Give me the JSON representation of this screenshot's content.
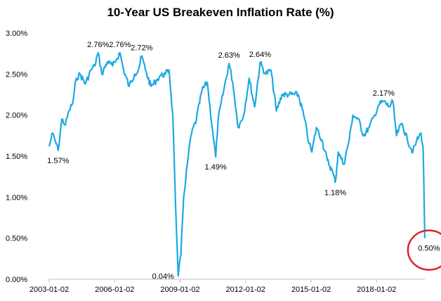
{
  "chart_data": {
    "type": "line",
    "title": "10-Year US Breakeven Inflation Rate (%)",
    "xlabel": "",
    "ylabel": "",
    "x_tick_labels": [
      "2003-01-02",
      "2006-01-02",
      "2009-01-02",
      "2012-01-02",
      "2015-01-02",
      "2018-01-02"
    ],
    "y_tick_labels": [
      "0.00%",
      "0.50%",
      "1.00%",
      "1.50%",
      "2.00%",
      "2.50%",
      "3.00%"
    ],
    "ylim": [
      0,
      3.0
    ],
    "xlim": [
      "2003-01-02",
      "2020-03-20"
    ],
    "grid": false,
    "legend": "none",
    "colors": {
      "line": "#1ea9e1",
      "highlight_circle": "#d9262c"
    },
    "series": [
      {
        "name": "",
        "points": [
          [
            "2003-01-02",
            1.62
          ],
          [
            "2003-03-01",
            1.78
          ],
          [
            "2003-05-01",
            1.65
          ],
          [
            "2003-06-01",
            1.57
          ],
          [
            "2003-08-01",
            1.95
          ],
          [
            "2003-10-01",
            1.88
          ],
          [
            "2003-12-01",
            2.05
          ],
          [
            "2004-02-01",
            2.15
          ],
          [
            "2004-04-01",
            2.45
          ],
          [
            "2004-06-01",
            2.5
          ],
          [
            "2004-09-01",
            2.38
          ],
          [
            "2004-12-01",
            2.55
          ],
          [
            "2005-02-01",
            2.6
          ],
          [
            "2005-04-01",
            2.76
          ],
          [
            "2005-06-01",
            2.5
          ],
          [
            "2005-09-01",
            2.65
          ],
          [
            "2005-12-01",
            2.6
          ],
          [
            "2006-02-01",
            2.68
          ],
          [
            "2006-04-01",
            2.76
          ],
          [
            "2006-06-01",
            2.55
          ],
          [
            "2006-09-01",
            2.35
          ],
          [
            "2006-12-01",
            2.5
          ],
          [
            "2007-02-01",
            2.55
          ],
          [
            "2007-04-01",
            2.72
          ],
          [
            "2007-06-01",
            2.55
          ],
          [
            "2007-09-01",
            2.35
          ],
          [
            "2007-12-01",
            2.42
          ],
          [
            "2008-02-01",
            2.48
          ],
          [
            "2008-05-01",
            2.5
          ],
          [
            "2008-07-01",
            2.55
          ],
          [
            "2008-09-01",
            2.0
          ],
          [
            "2008-10-01",
            1.3
          ],
          [
            "2008-11-01",
            0.6
          ],
          [
            "2008-12-01",
            0.04
          ],
          [
            "2009-01-15",
            0.3
          ],
          [
            "2009-03-01",
            1.0
          ],
          [
            "2009-05-01",
            1.4
          ],
          [
            "2009-07-01",
            1.75
          ],
          [
            "2009-10-01",
            1.95
          ],
          [
            "2010-01-01",
            2.3
          ],
          [
            "2010-04-01",
            2.4
          ],
          [
            "2010-07-01",
            1.8
          ],
          [
            "2010-08-20",
            1.49
          ],
          [
            "2010-10-01",
            1.95
          ],
          [
            "2011-01-01",
            2.3
          ],
          [
            "2011-04-01",
            2.63
          ],
          [
            "2011-06-01",
            2.4
          ],
          [
            "2011-09-01",
            1.85
          ],
          [
            "2011-12-01",
            2.0
          ],
          [
            "2012-03-01",
            2.45
          ],
          [
            "2012-06-01",
            2.1
          ],
          [
            "2012-09-01",
            2.64
          ],
          [
            "2012-12-01",
            2.5
          ],
          [
            "2013-03-01",
            2.55
          ],
          [
            "2013-06-01",
            2.05
          ],
          [
            "2013-09-01",
            2.25
          ],
          [
            "2014-01-01",
            2.25
          ],
          [
            "2014-06-01",
            2.25
          ],
          [
            "2014-09-01",
            2.0
          ],
          [
            "2014-12-01",
            1.65
          ],
          [
            "2015-01-15",
            1.55
          ],
          [
            "2015-04-01",
            1.85
          ],
          [
            "2015-07-01",
            1.7
          ],
          [
            "2015-10-01",
            1.45
          ],
          [
            "2016-01-01",
            1.3
          ],
          [
            "2016-02-11",
            1.18
          ],
          [
            "2016-04-01",
            1.55
          ],
          [
            "2016-07-01",
            1.4
          ],
          [
            "2016-10-01",
            1.7
          ],
          [
            "2016-12-01",
            2.0
          ],
          [
            "2017-03-01",
            1.95
          ],
          [
            "2017-06-01",
            1.75
          ],
          [
            "2017-09-01",
            1.85
          ],
          [
            "2017-12-01",
            2.0
          ],
          [
            "2018-02-01",
            2.12
          ],
          [
            "2018-05-01",
            2.17
          ],
          [
            "2018-08-01",
            2.1
          ],
          [
            "2018-10-01",
            2.17
          ],
          [
            "2018-12-01",
            1.75
          ],
          [
            "2019-03-01",
            1.9
          ],
          [
            "2019-06-01",
            1.7
          ],
          [
            "2019-09-01",
            1.55
          ],
          [
            "2019-11-01",
            1.68
          ],
          [
            "2020-01-15",
            1.78
          ],
          [
            "2020-02-20",
            1.6
          ],
          [
            "2020-03-05",
            1.1
          ],
          [
            "2020-03-19",
            0.5
          ]
        ]
      }
    ],
    "annotations": [
      {
        "label": "1.57%",
        "date": "2003-06-01",
        "value": 1.57,
        "pos": "below"
      },
      {
        "label": "2.76%",
        "date": "2005-04-01",
        "value": 2.76,
        "pos": "above"
      },
      {
        "label": "2.76%",
        "date": "2006-04-01",
        "value": 2.76,
        "pos": "above"
      },
      {
        "label": "2.72%",
        "date": "2007-04-01",
        "value": 2.72,
        "pos": "above"
      },
      {
        "label": "0.04%",
        "date": "2008-12-01",
        "value": 0.04,
        "pos": "left"
      },
      {
        "label": "1.49%",
        "date": "2010-08-20",
        "value": 1.49,
        "pos": "below"
      },
      {
        "label": "2.63%",
        "date": "2011-04-01",
        "value": 2.63,
        "pos": "above"
      },
      {
        "label": "2.64%",
        "date": "2012-09-01",
        "value": 2.64,
        "pos": "above"
      },
      {
        "label": "1.18%",
        "date": "2016-02-11",
        "value": 1.18,
        "pos": "below"
      },
      {
        "label": "2.17%",
        "date": "2018-05-01",
        "value": 2.17,
        "pos": "above"
      },
      {
        "label": "0.50%",
        "date": "2020-03-19",
        "value": 0.5,
        "pos": "below",
        "circled": true
      }
    ]
  }
}
